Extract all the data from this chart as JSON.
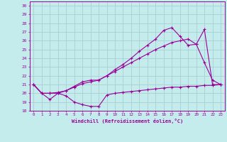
{
  "xlabel": "Windchill (Refroidissement éolien,°C)",
  "bg_color": "#c5eced",
  "grid_color": "#aacfd2",
  "line_color": "#990099",
  "xlim": [
    -0.5,
    23.5
  ],
  "ylim": [
    18,
    30.5
  ],
  "xticks": [
    0,
    1,
    2,
    3,
    4,
    5,
    6,
    7,
    8,
    9,
    10,
    11,
    12,
    13,
    14,
    15,
    16,
    17,
    18,
    19,
    20,
    21,
    22,
    23
  ],
  "yticks": [
    18,
    19,
    20,
    21,
    22,
    23,
    24,
    25,
    26,
    27,
    28,
    29,
    30
  ],
  "series": [
    {
      "x": [
        0,
        1,
        2,
        3,
        4,
        5,
        6,
        7,
        8,
        9,
        10,
        11,
        12,
        13,
        14,
        15,
        16,
        17,
        18,
        19,
        20,
        21,
        22,
        23
      ],
      "y": [
        21.0,
        20.0,
        19.3,
        20.0,
        19.7,
        19.0,
        18.7,
        18.5,
        18.5,
        19.8,
        20.0,
        20.1,
        20.2,
        20.3,
        20.4,
        20.5,
        20.6,
        20.7,
        20.7,
        20.8,
        20.8,
        20.9,
        20.9,
        21.0
      ]
    },
    {
      "x": [
        0,
        1,
        2,
        3,
        4,
        5,
        6,
        7,
        8,
        9,
        10,
        11,
        12,
        13,
        14,
        15,
        16,
        17,
        18,
        19,
        20,
        21,
        22,
        23
      ],
      "y": [
        21.0,
        20.0,
        20.0,
        20.1,
        20.3,
        20.7,
        21.1,
        21.3,
        21.5,
        22.0,
        22.5,
        23.0,
        23.5,
        24.0,
        24.5,
        25.0,
        25.4,
        25.8,
        26.0,
        26.2,
        25.6,
        23.5,
        21.5,
        21.0
      ]
    },
    {
      "x": [
        0,
        1,
        2,
        3,
        4,
        5,
        6,
        7,
        8,
        9,
        10,
        11,
        12,
        13,
        14,
        15,
        16,
        17,
        18,
        19,
        20,
        21,
        22,
        23
      ],
      "y": [
        21.0,
        20.0,
        20.0,
        20.0,
        20.3,
        20.8,
        21.3,
        21.5,
        21.5,
        22.0,
        22.7,
        23.3,
        24.0,
        24.8,
        25.5,
        26.2,
        27.2,
        27.5,
        26.5,
        25.5,
        25.6,
        27.3,
        21.0,
        21.0
      ]
    }
  ]
}
